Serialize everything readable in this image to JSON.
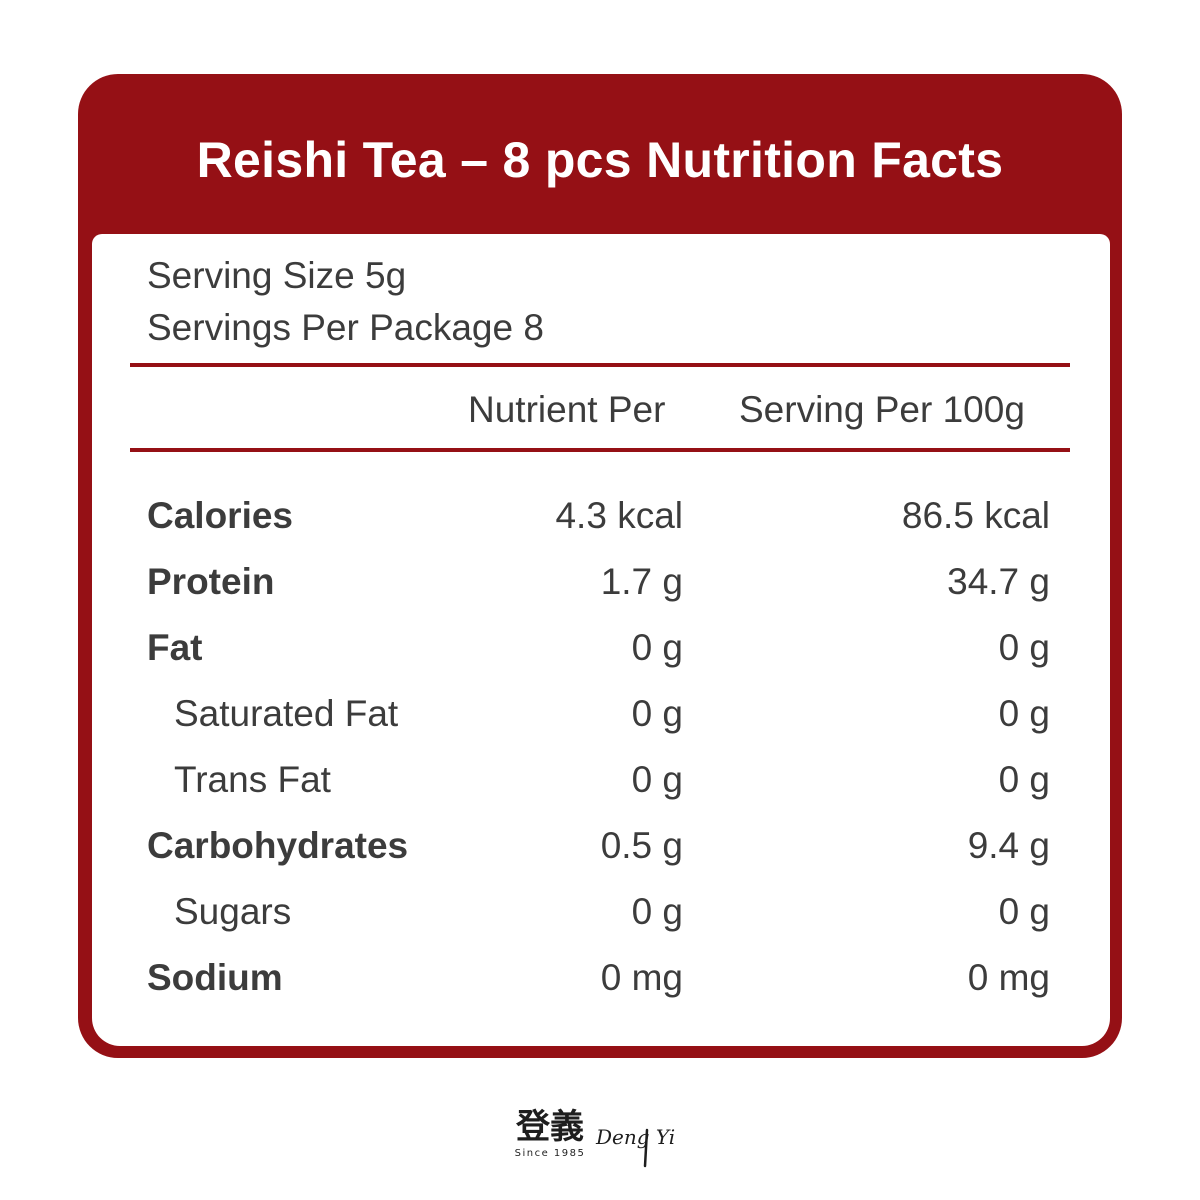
{
  "title": "Reishi Tea – 8 pcs Nutrition Facts",
  "serving_size": "Serving Size 5g",
  "servings_per_package": "Servings Per Package 8",
  "columns": {
    "per_serving": "Nutrient Per",
    "per_100g": "Serving Per 100g"
  },
  "nutrients": [
    {
      "label": "Calories",
      "per_serving": "4.3 kcal",
      "per_100g": "86.5 kcal"
    },
    {
      "label": "Protein",
      "per_serving": "1.7 g",
      "per_100g": "34.7 g"
    },
    {
      "label": "Fat",
      "per_serving": "0 g",
      "per_100g": "0 g"
    },
    {
      "label": "Saturated Fat",
      "per_serving": "0 g",
      "per_100g": "0 g"
    },
    {
      "label": "Trans Fat",
      "per_serving": "0 g",
      "per_100g": "0 g"
    },
    {
      "label": "Carbohydrates",
      "per_serving": "0.5 g",
      "per_100g": "9.4 g"
    },
    {
      "label": "Sugars",
      "per_serving": "0 g",
      "per_100g": "0 g"
    },
    {
      "label": "Sodium",
      "per_serving": "0 mg",
      "per_100g": "0 mg"
    }
  ],
  "brand": {
    "chinese": "登義",
    "latin": "Deng Yi",
    "since": "Since 1985"
  },
  "colors": {
    "accent": "#951015",
    "text": "#3c3c3c"
  }
}
